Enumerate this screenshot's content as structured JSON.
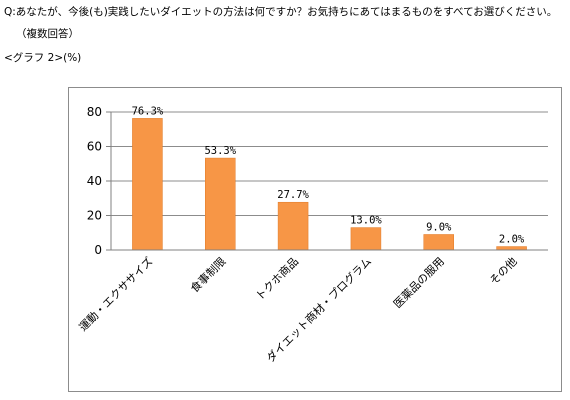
{
  "question": {
    "text": "Q:あなたが、今後(も)実践したいダイエットの方法は何ですか？お気持ちにあてはまるものをすべてお選びください。",
    "note": "（複数回答）"
  },
  "graph_label": "<グラフ 2>(%)",
  "colors": {
    "bar": "#f79646",
    "bar_edge": "#e07a27",
    "axis": "#808080",
    "grid": "#8c8c8c"
  },
  "chart_data": {
    "type": "bar",
    "categories": [
      "運動・エクササイズ",
      "食事制限",
      "トクホ商品",
      "ダイエット商材・プログラム",
      "医薬品の服用",
      "その他"
    ],
    "values": [
      76.3,
      53.3,
      27.7,
      13.0,
      9.0,
      2.0
    ],
    "data_labels": [
      "76.3%",
      "53.3%",
      "27.7%",
      "13.0%",
      "9.0%",
      "2.0%"
    ],
    "ylim": [
      0,
      80
    ],
    "yticks": [
      0,
      20,
      40,
      60,
      80
    ],
    "grid": true,
    "legend": false
  }
}
